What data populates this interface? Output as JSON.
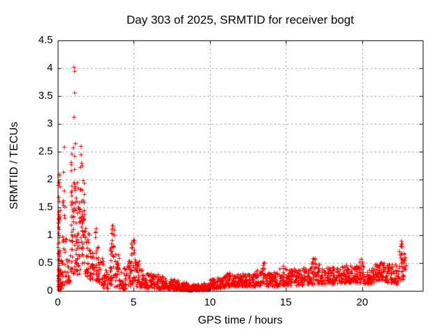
{
  "window": {
    "background": "#ffffff"
  },
  "chart_data": {
    "type": "scatter",
    "title": "Day 303 of 2025, SRMTID for receiver bogt",
    "xlabel": "GPS time / hours",
    "ylabel": "SRMTID / TECUs",
    "xlim": [
      0,
      24
    ],
    "ylim": [
      0,
      4.5
    ],
    "xticks": [
      0,
      5,
      10,
      15,
      20
    ],
    "xtick_labels": [
      "0",
      "5",
      "10",
      "15",
      "20"
    ],
    "yticks": [
      0,
      0.5,
      1,
      1.5,
      2,
      2.5,
      3,
      3.5,
      4,
      4.5
    ],
    "ytick_labels": [
      "0",
      "0.5",
      "1",
      "1.5",
      "2",
      "2.5",
      "3",
      "3.5",
      "4",
      "4.5"
    ],
    "grid": true,
    "legend_position": "none",
    "marker": "plus",
    "marker_color": "#ff0000",
    "grid_color": "#888888",
    "axis_color": "#000000",
    "background": "#ffffff",
    "series_name": "SRMTID",
    "data_end_hour": 22.9,
    "density_bins": [
      [
        0.0,
        0.15,
        0.02,
        1.4,
        55,
        1.5
      ],
      [
        0.0,
        0.15,
        1.4,
        2.1,
        8,
        1.0
      ],
      [
        0.15,
        0.3,
        0.05,
        0.6,
        18,
        1.5
      ],
      [
        0.3,
        0.5,
        0.1,
        1.1,
        20,
        1.3
      ],
      [
        0.3,
        0.48,
        1.25,
        1.85,
        7,
        1.0
      ],
      [
        0.55,
        0.85,
        0.15,
        1.05,
        25,
        1.3
      ],
      [
        0.85,
        1.15,
        0.3,
        2.05,
        45,
        1.1
      ],
      [
        0.85,
        1.15,
        2.05,
        2.5,
        6,
        1.0
      ],
      [
        1.15,
        1.45,
        0.3,
        1.7,
        40,
        1.2
      ],
      [
        1.45,
        1.75,
        0.45,
        1.7,
        35,
        1.0
      ],
      [
        1.45,
        1.75,
        1.7,
        2.0,
        6,
        1.0
      ],
      [
        1.75,
        2.1,
        0.25,
        1.1,
        35,
        1.4
      ],
      [
        2.1,
        2.45,
        0.2,
        0.75,
        30,
        1.4
      ],
      [
        2.45,
        2.65,
        0.15,
        1.15,
        22,
        1.4
      ],
      [
        2.65,
        3.0,
        0.1,
        0.6,
        28,
        1.5
      ],
      [
        3.0,
        3.35,
        0.05,
        0.4,
        26,
        1.5
      ],
      [
        3.35,
        3.55,
        0.1,
        0.85,
        18,
        1.3
      ],
      [
        3.5,
        3.7,
        0.1,
        1.18,
        20,
        1.3
      ],
      [
        3.7,
        4.05,
        0.08,
        0.7,
        30,
        1.5
      ],
      [
        4.05,
        4.5,
        0.04,
        0.42,
        34,
        1.5
      ],
      [
        4.5,
        4.8,
        0.08,
        0.55,
        26,
        1.4
      ],
      [
        4.8,
        5.1,
        0.12,
        0.92,
        30,
        1.3
      ],
      [
        5.1,
        5.4,
        0.08,
        0.55,
        28,
        1.5
      ],
      [
        5.4,
        5.8,
        0.06,
        0.38,
        34,
        1.5
      ],
      [
        5.8,
        6.2,
        0.05,
        0.32,
        36,
        1.5
      ],
      [
        6.2,
        6.6,
        0.05,
        0.3,
        36,
        1.5
      ],
      [
        6.6,
        7.0,
        0.04,
        0.26,
        36,
        1.5
      ],
      [
        7.0,
        7.5,
        0.03,
        0.24,
        44,
        1.5
      ],
      [
        7.5,
        8.0,
        0.02,
        0.2,
        44,
        1.5
      ],
      [
        8.0,
        8.5,
        0.02,
        0.16,
        44,
        1.4
      ],
      [
        8.5,
        9.0,
        0.01,
        0.12,
        44,
        1.3
      ],
      [
        9.0,
        9.5,
        0.01,
        0.12,
        44,
        1.3
      ],
      [
        9.5,
        10.0,
        0.02,
        0.16,
        44,
        1.4
      ],
      [
        10.0,
        10.5,
        0.04,
        0.22,
        42,
        1.4
      ],
      [
        10.5,
        11.0,
        0.05,
        0.26,
        42,
        1.4
      ],
      [
        11.0,
        11.4,
        0.08,
        0.33,
        36,
        1.3
      ],
      [
        11.4,
        11.8,
        0.08,
        0.3,
        36,
        1.3
      ],
      [
        11.8,
        12.2,
        0.08,
        0.32,
        36,
        1.3
      ],
      [
        12.2,
        12.6,
        0.08,
        0.3,
        36,
        1.3
      ],
      [
        12.6,
        13.0,
        0.08,
        0.32,
        36,
        1.3
      ],
      [
        13.0,
        13.4,
        0.1,
        0.38,
        34,
        1.3
      ],
      [
        13.4,
        13.65,
        0.12,
        0.52,
        20,
        1.2
      ],
      [
        13.65,
        14.1,
        0.08,
        0.33,
        38,
        1.4
      ],
      [
        14.1,
        14.6,
        0.08,
        0.35,
        42,
        1.4
      ],
      [
        14.6,
        15.1,
        0.1,
        0.45,
        42,
        1.3
      ],
      [
        15.1,
        15.6,
        0.1,
        0.4,
        42,
        1.3
      ],
      [
        15.6,
        16.1,
        0.1,
        0.38,
        42,
        1.3
      ],
      [
        16.1,
        16.6,
        0.12,
        0.42,
        42,
        1.3
      ],
      [
        16.6,
        16.95,
        0.12,
        0.6,
        30,
        1.2
      ],
      [
        16.95,
        17.4,
        0.12,
        0.48,
        38,
        1.3
      ],
      [
        17.4,
        17.9,
        0.12,
        0.42,
        42,
        1.3
      ],
      [
        17.9,
        18.4,
        0.12,
        0.46,
        42,
        1.3
      ],
      [
        18.4,
        18.9,
        0.15,
        0.44,
        42,
        1.3
      ],
      [
        18.9,
        19.4,
        0.15,
        0.48,
        42,
        1.3
      ],
      [
        19.4,
        19.8,
        0.15,
        0.45,
        36,
        1.3
      ],
      [
        19.8,
        20.1,
        0.15,
        0.6,
        26,
        1.2
      ],
      [
        20.1,
        20.6,
        0.12,
        0.46,
        42,
        1.3
      ],
      [
        20.6,
        21.1,
        0.15,
        0.48,
        42,
        1.3
      ],
      [
        21.1,
        21.6,
        0.18,
        0.52,
        42,
        1.3
      ],
      [
        21.6,
        22.1,
        0.15,
        0.48,
        42,
        1.3
      ],
      [
        22.1,
        22.45,
        0.12,
        0.5,
        30,
        1.3
      ],
      [
        22.45,
        22.75,
        0.2,
        0.88,
        28,
        1.1
      ],
      [
        22.75,
        22.9,
        0.25,
        0.7,
        12,
        1.1
      ]
    ],
    "outliers": [
      [
        1.05,
        4.02
      ],
      [
        1.08,
        3.95
      ],
      [
        1.1,
        3.56
      ],
      [
        1.05,
        3.12
      ],
      [
        1.12,
        2.65
      ],
      [
        1.02,
        2.58
      ],
      [
        1.5,
        2.6
      ],
      [
        0.4,
        2.59
      ],
      [
        0.37,
        2.14
      ],
      [
        1.52,
        2.45
      ],
      [
        1.55,
        2.3
      ],
      [
        1.48,
        2.22
      ],
      [
        1.58,
        2.25
      ],
      [
        0.08,
        2.1
      ],
      [
        0.06,
        1.95
      ],
      [
        0.4,
        1.8
      ],
      [
        0.35,
        1.63
      ],
      [
        1.3,
        1.95
      ],
      [
        1.32,
        1.85
      ],
      [
        2.52,
        1.13
      ],
      [
        3.55,
        1.18
      ],
      [
        3.58,
        1.1
      ],
      [
        1.85,
        1.12
      ],
      [
        4.95,
        0.9
      ],
      [
        13.52,
        0.5
      ],
      [
        16.8,
        0.58
      ],
      [
        19.92,
        0.58
      ],
      [
        22.6,
        0.9
      ],
      [
        22.62,
        0.85
      ],
      [
        22.58,
        0.8
      ]
    ]
  }
}
